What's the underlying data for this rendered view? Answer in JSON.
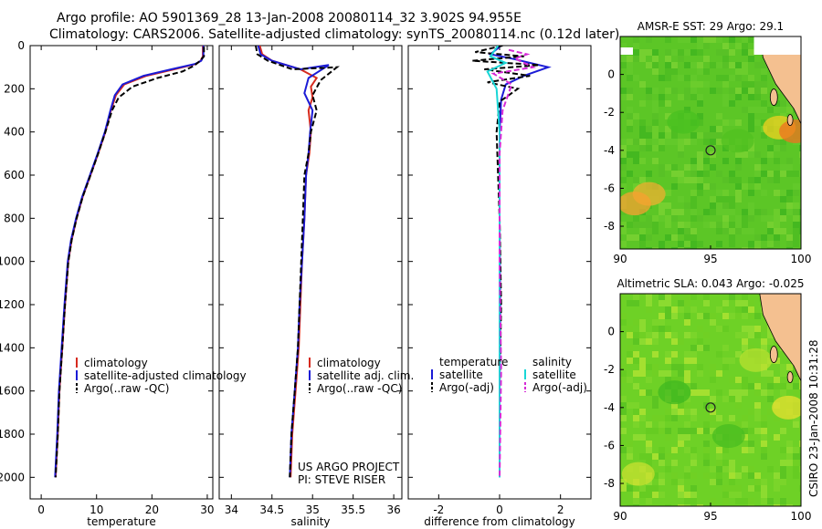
{
  "header": {
    "line1": "Argo profile: AO 5901369_28 13-Jan-2008 20080114_32 3.902S 94.955E",
    "line2": "Climatology: CARS2006. Satellite-adjusted climatology: synTS_20080114.nc (0.12d later)"
  },
  "side_note": "CSIRO 23-Jan-2008 10:31:28",
  "colors": {
    "climatology": "#d62a1e",
    "satellite": "#1b1bd6",
    "argo": "#000000",
    "sat_sal": "#19d6d6",
    "argo_sal": "#d62ad6",
    "land": "#f4c090",
    "marker": "#222222"
  },
  "chart_data": [
    {
      "type": "line",
      "name": "temperature-profile",
      "xlabel": "temperature",
      "ylabel": "",
      "xlim": [
        -2,
        31
      ],
      "ylim": [
        2100,
        0
      ],
      "xticks": [
        "0",
        "10",
        "20",
        "30"
      ],
      "xtick_values": [
        0,
        10,
        20,
        30
      ],
      "yticks": [
        "0",
        "200",
        "400",
        "600",
        "800",
        "1000",
        "1200",
        "1400",
        "1600",
        "1800",
        "2000"
      ],
      "ytick_values": [
        0,
        200,
        400,
        600,
        800,
        1000,
        1200,
        1400,
        1600,
        1800,
        2000
      ],
      "series": [
        {
          "name": "climatology",
          "style": "solid",
          "color": "#d62a1e",
          "x": [
            29.2,
            29.2,
            28.8,
            28,
            24,
            19,
            15,
            13.5,
            12.6,
            11.6,
            10.3,
            8.9,
            7.5,
            6.4,
            5.5,
            4.9,
            4.3,
            3.8,
            3.3,
            3.0,
            2.6
          ],
          "y": [
            0,
            50,
            70,
            85,
            110,
            140,
            180,
            230,
            300,
            400,
            500,
            600,
            700,
            800,
            900,
            1000,
            1200,
            1400,
            1600,
            1800,
            2000
          ]
        },
        {
          "name": "satellite-adjusted climatology",
          "style": "solid",
          "color": "#1b1bd6",
          "x": [
            29.3,
            29.3,
            28.9,
            27.8,
            23.5,
            18.5,
            14.7,
            13.3,
            12.5,
            11.5,
            10.2,
            8.8,
            7.4,
            6.3,
            5.4,
            4.8,
            4.2,
            3.7,
            3.2,
            2.9,
            2.5
          ],
          "y": [
            0,
            50,
            70,
            85,
            110,
            140,
            180,
            230,
            300,
            400,
            500,
            600,
            700,
            800,
            900,
            1000,
            1200,
            1400,
            1600,
            1800,
            2000
          ]
        },
        {
          "name": "Argo(..raw -QC)",
          "style": "dashed",
          "color": "#000000",
          "x": [
            29.4,
            29.4,
            28.5,
            27.5,
            25.5,
            21,
            16.5,
            14,
            12.8,
            11.6,
            10.3,
            8.9,
            7.5,
            6.4,
            5.5,
            4.9,
            4.3,
            3.8,
            3.3,
            3.0,
            2.6
          ],
          "y": [
            5,
            50,
            75,
            95,
            120,
            150,
            190,
            240,
            300,
            400,
            500,
            600,
            700,
            800,
            900,
            1000,
            1200,
            1400,
            1600,
            1800,
            2000
          ]
        }
      ],
      "legend": [
        "climatology",
        "satellite-adjusted climatology",
        "Argo(..raw -QC)"
      ]
    },
    {
      "type": "line",
      "name": "salinity-profile",
      "xlabel": "salinity",
      "xlim": [
        33.85,
        36.1
      ],
      "ylim": [
        2100,
        0
      ],
      "xticks": [
        "34",
        "34.5",
        "35",
        "35.5",
        "36"
      ],
      "xtick_values": [
        34,
        34.5,
        35,
        35.5,
        36
      ],
      "series": [
        {
          "name": "climatology",
          "style": "solid",
          "color": "#d62a1e",
          "x": [
            34.35,
            34.38,
            34.5,
            34.85,
            35.05,
            34.98,
            35.0,
            34.95,
            34.98,
            34.96,
            34.92,
            34.9,
            34.87,
            34.85,
            34.83,
            34.79,
            34.75,
            34.73
          ],
          "y": [
            0,
            40,
            70,
            110,
            150,
            190,
            240,
            300,
            400,
            500,
            600,
            800,
            1000,
            1200,
            1400,
            1600,
            1800,
            2000
          ]
        },
        {
          "name": "satellite adj. clim.",
          "style": "solid",
          "color": "#1b1bd6",
          "x": [
            34.33,
            34.36,
            34.5,
            34.85,
            35.2,
            34.95,
            34.9,
            35.0,
            34.97,
            34.95,
            34.92,
            34.9,
            34.87,
            34.84,
            34.82,
            34.78,
            34.74,
            34.72
          ],
          "y": [
            0,
            40,
            70,
            110,
            90,
            150,
            220,
            300,
            400,
            500,
            600,
            800,
            1000,
            1200,
            1400,
            1600,
            1800,
            2000
          ]
        },
        {
          "name": "Argo(..raw -QC)",
          "style": "dashed",
          "color": "#000000",
          "x": [
            34.3,
            34.32,
            34.45,
            34.75,
            35.3,
            35.1,
            35.0,
            35.05,
            34.98,
            34.95,
            34.9,
            34.88,
            34.86,
            34.84,
            34.82,
            34.78,
            34.74,
            34.72
          ],
          "y": [
            0,
            40,
            70,
            110,
            100,
            160,
            230,
            300,
            400,
            500,
            600,
            800,
            1000,
            1200,
            1400,
            1600,
            1800,
            2000
          ]
        }
      ],
      "legend": [
        "climatology",
        "satellite adj. clim.",
        "Argo(..raw -QC)"
      ],
      "annotation": [
        "US ARGO PROJECT",
        "PI: STEVE RISER"
      ]
    },
    {
      "type": "line",
      "name": "difference-profile",
      "xlabel": "difference from climatology",
      "xlim": [
        -3,
        3
      ],
      "ylim": [
        2100,
        0
      ],
      "xticks": [
        "-2",
        "0",
        "2"
      ],
      "xtick_values": [
        -2,
        0,
        2
      ],
      "series": [
        {
          "name": "temperature satellite",
          "style": "solid",
          "color": "#1b1bd6",
          "x": [
            0.05,
            -0.3,
            0.4,
            1.6,
            0.8,
            0.2,
            0.05,
            0.0,
            0.0,
            0.02,
            0.0,
            0.0
          ],
          "y": [
            0,
            40,
            60,
            100,
            140,
            180,
            250,
            400,
            800,
            1200,
            1600,
            2000
          ]
        },
        {
          "name": "temperature Argo(-adj)",
          "style": "dashed",
          "color": "#000000",
          "x": [
            0.1,
            -0.8,
            0.8,
            -0.9,
            1.3,
            -0.5,
            1.0,
            -0.4,
            0.6,
            0.0,
            -0.1,
            0.0,
            0.05,
            0.0,
            0.0
          ],
          "y": [
            0,
            30,
            50,
            70,
            90,
            110,
            140,
            170,
            200,
            260,
            400,
            800,
            1200,
            1600,
            2000
          ]
        },
        {
          "name": "salinity satellite",
          "style": "solid",
          "color": "#19d6d6",
          "x": [
            -0.05,
            -0.3,
            0.2,
            -0.4,
            -0.1,
            0.0,
            0.0,
            0.0,
            0.0,
            0.0
          ],
          "y": [
            0,
            50,
            80,
            120,
            200,
            400,
            800,
            1200,
            1600,
            2000
          ]
        },
        {
          "name": "salinity Argo(-adj)",
          "style": "dashed",
          "color": "#d62ad6",
          "x": [
            0.3,
            0.9,
            0.5,
            1.1,
            -0.2,
            0.4,
            0.1,
            0.0,
            0.0,
            0.05,
            0.0
          ],
          "y": [
            20,
            40,
            60,
            100,
            130,
            180,
            300,
            500,
            1000,
            1500,
            2000
          ]
        }
      ],
      "legend_temp": {
        "heading": "temperature",
        "items": [
          "satellite",
          "Argo(-adj)"
        ]
      },
      "legend_sal": {
        "heading": "salinity",
        "items": [
          "satellite",
          "Argo(-adj)"
        ]
      }
    },
    {
      "type": "heatmap",
      "name": "sst-map",
      "title": "AMSR-E SST: 29 Argo: 29.1",
      "xlim": [
        90,
        100
      ],
      "ylim": [
        -9.2,
        2
      ],
      "xticks": [
        "90",
        "95",
        "100"
      ],
      "xtick_values": [
        90,
        95,
        100
      ],
      "yticks": [
        "0",
        "-2",
        "-4",
        "-6",
        "-8"
      ],
      "ytick_values": [
        0,
        -2,
        -4,
        -6,
        -8
      ],
      "marker": {
        "lon": 95,
        "lat": -4
      },
      "blobs": [
        {
          "lon": 91.6,
          "lat": -6.3,
          "value": "#f2b030"
        },
        {
          "lon": 90.8,
          "lat": -6.8,
          "value": "#f7a030"
        },
        {
          "lon": 98.8,
          "lat": -2.8,
          "value": "#f0d020"
        },
        {
          "lon": 99.7,
          "lat": -3.0,
          "value": "#f07020"
        },
        {
          "lon": 93.5,
          "lat": -2.5,
          "value": "#48c020"
        },
        {
          "lon": 96.5,
          "lat": -3.5,
          "value": "#50c020"
        }
      ]
    },
    {
      "type": "heatmap",
      "name": "sla-map",
      "title": "Altimetric SLA: 0.043 Argo: -0.025",
      "xlim": [
        90,
        100
      ],
      "ylim": [
        -9.2,
        2
      ],
      "xticks": [
        "90",
        "95",
        "100"
      ],
      "xtick_values": [
        90,
        95,
        100
      ],
      "yticks": [
        "0",
        "-2",
        "-4",
        "-6",
        "-8"
      ],
      "ytick_values": [
        0,
        -2,
        -4,
        -6,
        -8
      ],
      "marker": {
        "lon": 95,
        "lat": -4
      },
      "blobs": [
        {
          "lon": 99.3,
          "lat": -4.0,
          "value": "#e8e030"
        },
        {
          "lon": 93.0,
          "lat": -3.2,
          "value": "#40b820"
        },
        {
          "lon": 96.0,
          "lat": -5.5,
          "value": "#48bc20"
        },
        {
          "lon": 91.0,
          "lat": -7.5,
          "value": "#c8e030"
        },
        {
          "lon": 97.5,
          "lat": -1.5,
          "value": "#b8e030"
        }
      ]
    }
  ]
}
